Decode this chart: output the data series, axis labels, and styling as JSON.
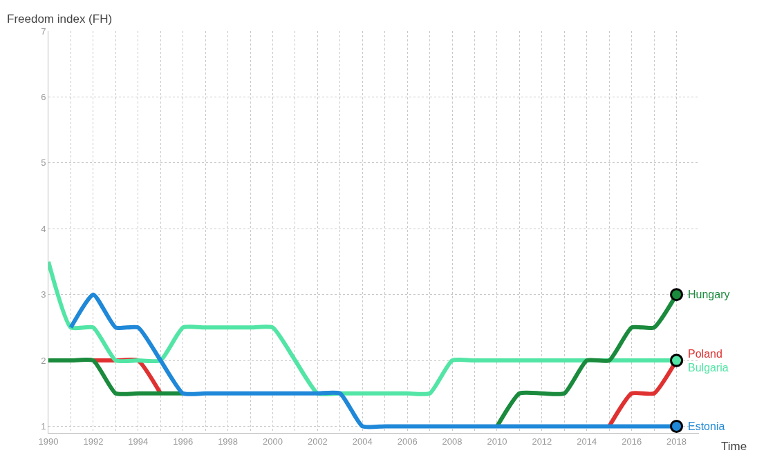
{
  "chart_data": {
    "type": "line",
    "ylabel": "Freedom index (FH)",
    "xlabel": "Time",
    "x": [
      1990,
      1991,
      1992,
      1993,
      1994,
      1995,
      1996,
      1997,
      1998,
      1999,
      2000,
      2001,
      2002,
      2003,
      2004,
      2005,
      2006,
      2007,
      2008,
      2009,
      2010,
      2011,
      2012,
      2013,
      2014,
      2015,
      2016,
      2017,
      2018
    ],
    "series": [
      {
        "name": "Poland",
        "color": "#e03131",
        "values": [
          null,
          null,
          2,
          2,
          2,
          1.5,
          null,
          null,
          null,
          null,
          null,
          null,
          null,
          null,
          null,
          null,
          null,
          null,
          null,
          null,
          null,
          null,
          null,
          null,
          null,
          1,
          1.5,
          1.5,
          2
        ]
      },
      {
        "name": "Bulgaria",
        "color": "#52e5a5",
        "values": [
          3.5,
          2.5,
          2.5,
          2,
          2,
          2,
          2.5,
          2.5,
          2.5,
          2.5,
          2.5,
          2,
          1.5,
          1.5,
          1.5,
          1.5,
          1.5,
          1.5,
          2,
          2,
          2,
          2,
          2,
          2,
          2,
          2,
          2,
          2,
          2
        ]
      },
      {
        "name": "Hungary",
        "color": "#1a8a3c",
        "values": [
          2,
          2,
          2,
          1.5,
          1.5,
          1.5,
          1.5,
          null,
          null,
          null,
          null,
          null,
          null,
          null,
          null,
          null,
          null,
          null,
          null,
          null,
          1,
          1.5,
          1.5,
          1.5,
          2,
          2,
          2.5,
          2.5,
          3
        ]
      },
      {
        "name": "Estonia",
        "color": "#1f88d8",
        "values": [
          null,
          2.5,
          3,
          2.5,
          2.5,
          2,
          1.5,
          1.5,
          1.5,
          1.5,
          1.5,
          1.5,
          1.5,
          1.5,
          1,
          1,
          1,
          1,
          1,
          1,
          1,
          1,
          1,
          1,
          1,
          1,
          1,
          1,
          1
        ]
      }
    ],
    "xlim": [
      1990,
      2019
    ],
    "xticks": [
      1990,
      1992,
      1994,
      1996,
      1998,
      2000,
      2002,
      2004,
      2006,
      2008,
      2010,
      2012,
      2014,
      2016,
      2018
    ],
    "ylim": [
      0.9,
      7
    ],
    "yticks": [
      1,
      2,
      3,
      4,
      5,
      6,
      7
    ],
    "grid": true,
    "legend": false
  }
}
